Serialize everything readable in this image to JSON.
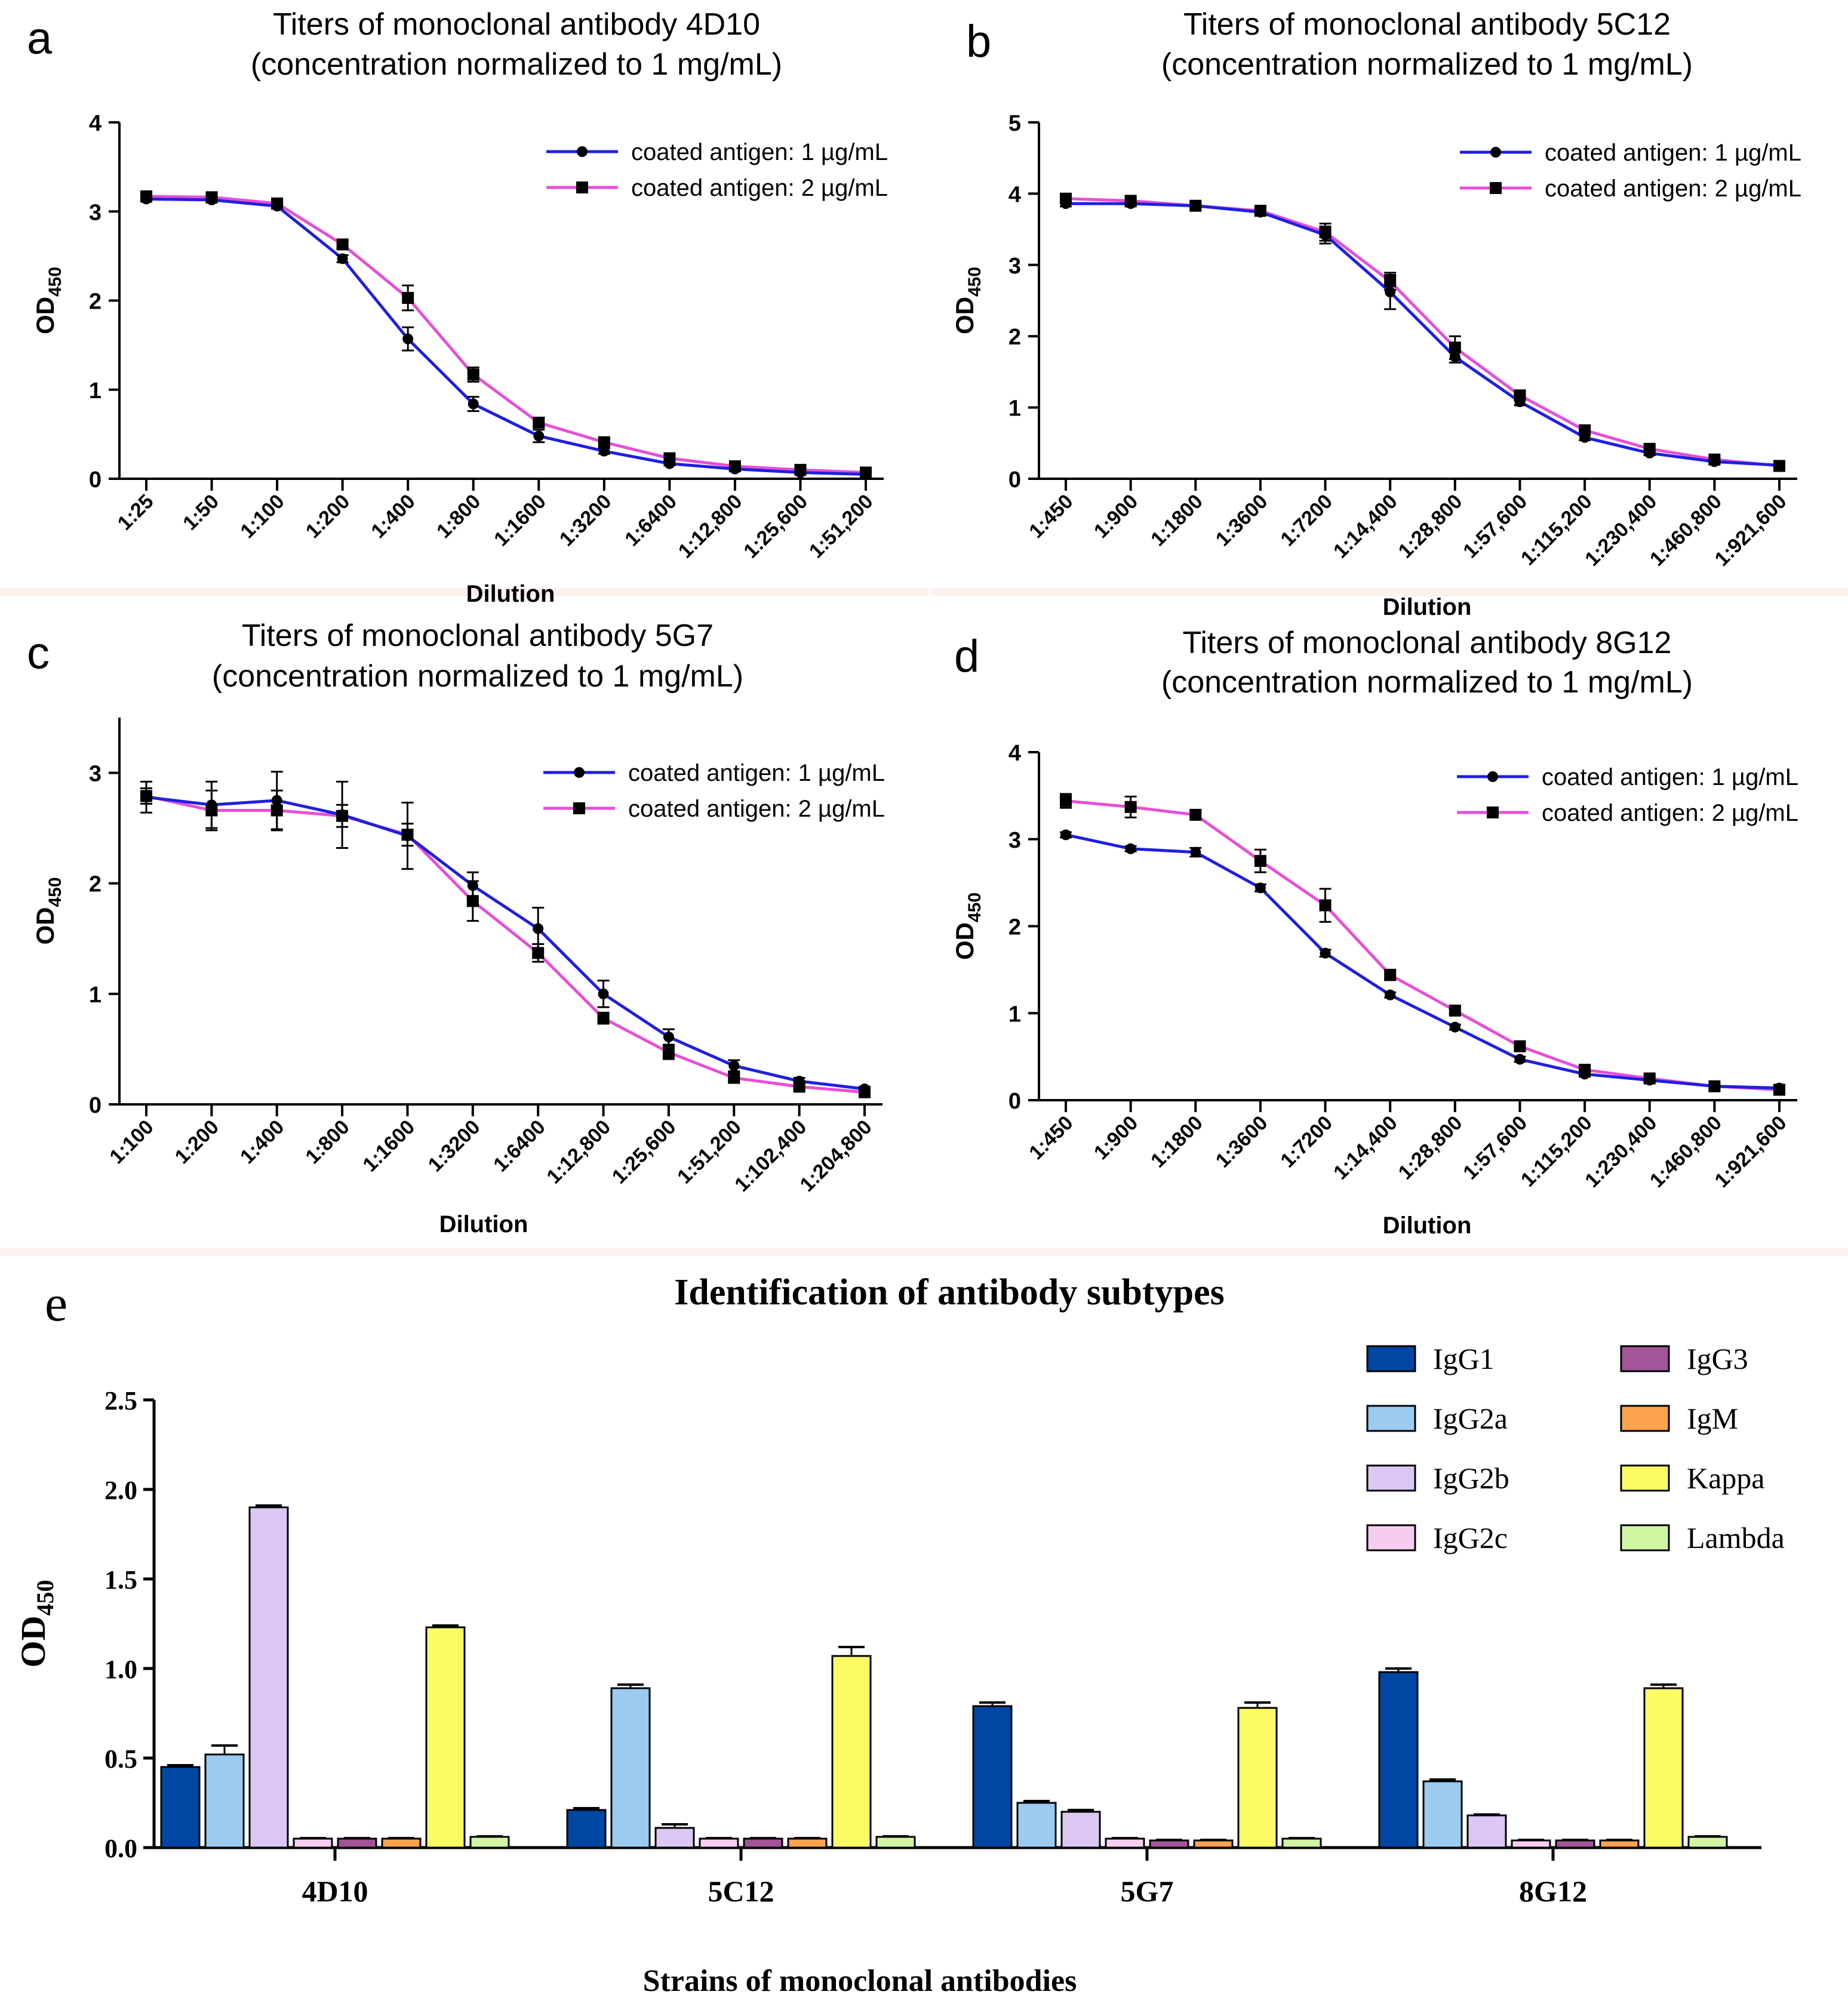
{
  "figure": {
    "legend_labels": [
      "coated antigen: 1 µg/mL",
      "coated antigen: 2 µg/mL"
    ],
    "od_label": "OD",
    "od_sub": "450",
    "colors": {
      "series1": "#1f1fe0",
      "series2": "#e64fd6",
      "marker": "#000000"
    }
  },
  "chart_data": [
    {
      "id": "a",
      "type": "line",
      "panel_letter": "a",
      "title": "Titers of monoclonal antibody 4D10",
      "subtitle": "(concentration normalized to 1 mg/mL)",
      "xlabel": "Dilution",
      "ylabel": "OD450",
      "ylim": [
        0,
        4
      ],
      "yticks": [
        "0",
        "1",
        "2",
        "3",
        "4"
      ],
      "categories": [
        "1:25",
        "1:50",
        "1:100",
        "1:200",
        "1:400",
        "1:800",
        "1:1600",
        "1:3200",
        "1:6400",
        "1:12,800",
        "1:25,600",
        "1:51,200"
      ],
      "series": [
        {
          "name": "coated antigen: 1 µg/mL",
          "values": [
            3.14,
            3.13,
            3.06,
            2.47,
            1.57,
            0.84,
            0.48,
            0.31,
            0.17,
            0.11,
            0.07,
            0.05
          ],
          "errors": [
            0.03,
            0.03,
            0.03,
            0.04,
            0.13,
            0.08,
            0.07,
            0.03,
            0.02,
            0.02,
            0.01,
            0.01
          ]
        },
        {
          "name": "coated antigen: 2 µg/mL",
          "values": [
            3.17,
            3.16,
            3.09,
            2.63,
            2.03,
            1.17,
            0.63,
            0.41,
            0.23,
            0.14,
            0.1,
            0.07
          ],
          "errors": [
            0.03,
            0.03,
            0.04,
            0.04,
            0.14,
            0.08,
            0.05,
            0.04,
            0.03,
            0.02,
            0.01,
            0.01
          ]
        }
      ]
    },
    {
      "id": "b",
      "type": "line",
      "panel_letter": "b",
      "title": "Titers of monoclonal antibody 5C12",
      "subtitle": "(concentration normalized to 1 mg/mL)",
      "xlabel": "Dilution",
      "ylabel": "OD450",
      "ylim": [
        0,
        5
      ],
      "yticks": [
        "0",
        "1",
        "2",
        "3",
        "4",
        "5"
      ],
      "categories": [
        "1:450",
        "1:900",
        "1:1800",
        "1:3600",
        "1:7200",
        "1:14,400",
        "1:28,800",
        "1:57,600",
        "1:115,200",
        "1:230,400",
        "1:460,800",
        "1:921,600"
      ],
      "series": [
        {
          "name": "coated antigen: 1 µg/mL",
          "values": [
            3.86,
            3.86,
            3.83,
            3.74,
            3.42,
            2.62,
            1.71,
            1.08,
            0.58,
            0.36,
            0.24,
            0.19
          ],
          "errors": [
            0.04,
            0.04,
            0.03,
            0.05,
            0.12,
            0.24,
            0.08,
            0.05,
            0.04,
            0.03,
            0.02,
            0.01
          ]
        },
        {
          "name": "coated antigen: 2 µg/mL",
          "values": [
            3.93,
            3.9,
            3.83,
            3.76,
            3.46,
            2.77,
            1.84,
            1.17,
            0.68,
            0.42,
            0.27,
            0.18
          ],
          "errors": [
            0.04,
            0.04,
            0.03,
            0.05,
            0.12,
            0.12,
            0.16,
            0.05,
            0.04,
            0.04,
            0.02,
            0.02
          ]
        }
      ]
    },
    {
      "id": "c",
      "type": "line",
      "panel_letter": "c",
      "title": "Titers of monoclonal antibody 5G7",
      "subtitle": "(concentration normalized to 1 mg/mL)",
      "xlabel": "Dilution",
      "ylabel": "OD450",
      "ylim": [
        0,
        3.5
      ],
      "yticks": [
        "0",
        "1",
        "2",
        "3"
      ],
      "categories": [
        "1:100",
        "1:200",
        "1:400",
        "1:800",
        "1:1600",
        "1:3200",
        "1:6400",
        "1:12,800",
        "1:25,600",
        "1:51,200",
        "1:102,400",
        "1:204,800"
      ],
      "series": [
        {
          "name": "coated antigen: 1 µg/mL",
          "values": [
            2.78,
            2.71,
            2.75,
            2.62,
            2.43,
            1.98,
            1.59,
            1.0,
            0.61,
            0.35,
            0.21,
            0.14
          ],
          "errors": [
            0.14,
            0.21,
            0.26,
            0.3,
            0.3,
            0.12,
            0.19,
            0.12,
            0.07,
            0.05,
            0.03,
            0.02
          ]
        },
        {
          "name": "coated antigen: 2 µg/mL",
          "values": [
            2.79,
            2.66,
            2.66,
            2.61,
            2.44,
            1.84,
            1.37,
            0.78,
            0.47,
            0.24,
            0.16,
            0.11
          ],
          "errors": [
            0.07,
            0.18,
            0.18,
            0.1,
            0.1,
            0.18,
            0.08,
            0.05,
            0.06,
            0.04,
            0.03,
            0.02
          ]
        }
      ]
    },
    {
      "id": "d",
      "type": "line",
      "panel_letter": "d",
      "title": "Titers of monoclonal antibody 8G12",
      "subtitle": "(concentration normalized to 1 mg/mL)",
      "xlabel": "Dilution",
      "ylabel": "OD450",
      "ylim": [
        0,
        4
      ],
      "yticks": [
        "0",
        "1",
        "2",
        "3",
        "4"
      ],
      "categories": [
        "1:450",
        "1:900",
        "1:1800",
        "1:3600",
        "1:7200",
        "1:14,400",
        "1:28,800",
        "1:57,600",
        "1:115,200",
        "1:230,400",
        "1:460,800",
        "1:921,600"
      ],
      "series": [
        {
          "name": "coated antigen: 1 µg/mL",
          "values": [
            3.05,
            2.89,
            2.85,
            2.44,
            1.69,
            1.21,
            0.84,
            0.47,
            0.3,
            0.23,
            0.16,
            0.14
          ],
          "errors": [
            0.03,
            0.03,
            0.05,
            0.04,
            0.04,
            0.03,
            0.03,
            0.03,
            0.03,
            0.02,
            0.02,
            0.02
          ]
        },
        {
          "name": "coated antigen: 2 µg/mL",
          "values": [
            3.44,
            3.37,
            3.28,
            2.75,
            2.24,
            1.44,
            1.03,
            0.62,
            0.35,
            0.25,
            0.16,
            0.12
          ],
          "errors": [
            0.08,
            0.12,
            0.05,
            0.13,
            0.19,
            0.06,
            0.05,
            0.04,
            0.03,
            0.03,
            0.02,
            0.02
          ]
        }
      ]
    },
    {
      "id": "e",
      "type": "bar",
      "panel_letter": "e",
      "title": "Identification of antibody subtypes",
      "xlabel": "Strains of monoclonal antibodies",
      "ylabel": "OD450",
      "ylim": [
        0,
        2.5
      ],
      "yticks": [
        "0.0",
        "0.5",
        "1.0",
        "1.5",
        "2.0",
        "2.5"
      ],
      "categories": [
        "4D10",
        "5C12",
        "5G7",
        "8G12"
      ],
      "series": [
        {
          "name": "IgG1",
          "color": "#0047a3",
          "values": [
            0.45,
            0.21,
            0.79,
            0.98
          ],
          "errors": [
            0.01,
            0.01,
            0.02,
            0.02
          ]
        },
        {
          "name": "IgG2a",
          "color": "#9ccbf2",
          "values": [
            0.52,
            0.89,
            0.25,
            0.37
          ],
          "errors": [
            0.05,
            0.02,
            0.01,
            0.01
          ]
        },
        {
          "name": "IgG2b",
          "color": "#dcc6f3",
          "values": [
            1.9,
            0.11,
            0.2,
            0.18
          ],
          "errors": [
            0.01,
            0.02,
            0.01,
            0.005
          ]
        },
        {
          "name": "IgG2c",
          "color": "#f6cdef",
          "values": [
            0.05,
            0.05,
            0.05,
            0.04
          ],
          "errors": [
            0.003,
            0.003,
            0.003,
            0.003
          ]
        },
        {
          "name": "IgG3",
          "color": "#a25598",
          "values": [
            0.05,
            0.05,
            0.04,
            0.04
          ],
          "errors": [
            0.003,
            0.003,
            0.003,
            0.003
          ]
        },
        {
          "name": "IgM",
          "color": "#fba24e",
          "values": [
            0.05,
            0.05,
            0.04,
            0.04
          ],
          "errors": [
            0.003,
            0.003,
            0.003,
            0.003
          ]
        },
        {
          "name": "Kappa",
          "color": "#fbfb66",
          "values": [
            1.23,
            1.07,
            0.78,
            0.89
          ],
          "errors": [
            0.01,
            0.05,
            0.03,
            0.02
          ]
        },
        {
          "name": "Lambda",
          "color": "#d2f5a3",
          "values": [
            0.06,
            0.06,
            0.05,
            0.06
          ],
          "errors": [
            0.003,
            0.003,
            0.003,
            0.003
          ]
        }
      ]
    }
  ]
}
